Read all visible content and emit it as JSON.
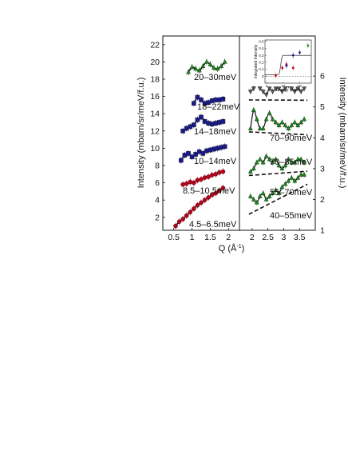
{
  "chart_data": [
    {
      "panel": "left",
      "type": "scatter",
      "xlabel": "Q (Å",
      "xlabel_sup": "-1",
      "xlabel_end": ")",
      "ylabel": "Intensity (mbarn/sr/meV/f.u.)",
      "xlim": [
        0.2,
        2.3
      ],
      "ylim": [
        0.5,
        23
      ],
      "xticks": [
        "0.5",
        "1",
        "1.5",
        "2"
      ],
      "yticks": [
        "2",
        "4",
        "6",
        "8",
        "10",
        "12",
        "14",
        "16",
        "18",
        "20",
        "22"
      ],
      "series": [
        {
          "name": "4.5-6.5meV",
          "label": "4.5–6.5meV",
          "color": "#c0001a",
          "marker": "circle",
          "x": [
            0.55,
            0.65,
            0.75,
            0.85,
            0.95,
            1.05,
            1.15,
            1.25,
            1.35,
            1.45,
            1.55,
            1.65,
            1.75,
            1.85
          ],
          "y": [
            1.0,
            1.5,
            1.8,
            2.2,
            2.6,
            3.0,
            3.4,
            3.7,
            4.0,
            4.3,
            4.6,
            4.8,
            5.1,
            5.4
          ]
        },
        {
          "name": "8.5-10.5meV",
          "label": "8.5–10.5meV",
          "color": "#c0001a",
          "marker": "circle",
          "x": [
            0.75,
            0.85,
            0.95,
            1.05,
            1.15,
            1.25,
            1.35,
            1.45,
            1.55,
            1.65,
            1.75,
            1.85
          ],
          "y": [
            5.8,
            5.9,
            6.1,
            6.0,
            6.3,
            6.4,
            6.6,
            6.7,
            6.9,
            7.0,
            7.2,
            7.3
          ]
        },
        {
          "name": "10-14meV",
          "label": "10–14meV",
          "color": "#1a1a8c",
          "marker": "square",
          "x": [
            0.7,
            0.8,
            0.9,
            1.0,
            1.1,
            1.2,
            1.3,
            1.4,
            1.5,
            1.6,
            1.7,
            1.8,
            1.9
          ],
          "y": [
            8.6,
            9.2,
            9.4,
            9.0,
            9.3,
            9.6,
            9.4,
            9.7,
            9.8,
            9.9,
            10.0,
            10.1,
            10.2
          ]
        },
        {
          "name": "14-18meV",
          "label": "14–18meV",
          "color": "#1a1a8c",
          "marker": "square",
          "x": [
            0.75,
            0.85,
            0.95,
            1.05,
            1.15,
            1.25,
            1.35,
            1.45,
            1.55,
            1.65,
            1.75,
            1.85
          ],
          "y": [
            12.0,
            12.3,
            12.5,
            12.7,
            13.3,
            13.6,
            13.1,
            12.9,
            12.8,
            12.9,
            13.0,
            13.1
          ]
        },
        {
          "name": "18-22meV",
          "label": "18–22meV",
          "color": "#1a1a8c",
          "marker": "square",
          "x": [
            1.05,
            1.15,
            1.25,
            1.35,
            1.45,
            1.55,
            1.65,
            1.75,
            1.85
          ],
          "y": [
            15.2,
            15.9,
            15.6,
            15.2,
            15.3,
            15.5,
            15.6,
            15.6,
            15.7
          ]
        },
        {
          "name": "20-30meV",
          "label": "20–30meV",
          "color": "#1a8c1a",
          "marker": "triangle",
          "x": [
            0.9,
            1.0,
            1.1,
            1.2,
            1.3,
            1.4,
            1.5,
            1.6,
            1.7,
            1.8,
            1.9
          ],
          "y": [
            18.8,
            19.4,
            19.2,
            19.0,
            19.5,
            20.0,
            19.7,
            19.3,
            19.2,
            19.5,
            20.0
          ]
        }
      ]
    },
    {
      "panel": "right",
      "type": "scatter",
      "ylabel": "Intensity (mbarn/sr/meV/f.u.)",
      "xlim": [
        1.6,
        4.0
      ],
      "ylim": [
        1,
        7.3
      ],
      "xticks": [
        "2",
        "2.5",
        "3",
        "3.5"
      ],
      "yticks": [
        "1",
        "2",
        "3",
        "4",
        "5",
        "6"
      ],
      "series": [
        {
          "name": "40-55meV",
          "label": "40–55meV",
          "color": "#1a8c1a",
          "marker": "triangle",
          "x": [
            1.95,
            2.05,
            2.15,
            2.25,
            2.35,
            2.45,
            2.55,
            2.65,
            2.75,
            2.85,
            2.95,
            3.05,
            3.15,
            3.25,
            3.35,
            3.45,
            3.55,
            3.65
          ],
          "y": [
            2.1,
            2.0,
            1.9,
            2.1,
            2.2,
            2.0,
            2.1,
            2.2,
            2.3,
            2.2,
            2.4,
            2.5,
            2.6,
            2.7,
            2.6,
            2.7,
            2.8,
            2.8
          ]
        },
        {
          "name": "55-70meV",
          "label": "55–70meV",
          "color": "#1a8c1a",
          "marker": "triangle",
          "x": [
            1.95,
            2.05,
            2.15,
            2.25,
            2.35,
            2.45,
            2.55,
            2.65,
            2.75,
            2.85,
            2.95,
            3.05,
            3.15,
            3.25,
            3.35,
            3.45,
            3.55,
            3.65
          ],
          "y": [
            2.9,
            3.0,
            3.2,
            3.3,
            3.2,
            3.4,
            3.3,
            3.2,
            3.3,
            3.1,
            3.0,
            3.1,
            3.3,
            3.2,
            3.2,
            3.3,
            3.3,
            3.2
          ]
        },
        {
          "name": "70-85meV",
          "label": "70–85meV",
          "color": "#1a8c1a",
          "marker": "triangle",
          "x": [
            1.95,
            2.05,
            2.15,
            2.25,
            2.35,
            2.45,
            2.55,
            2.65,
            2.75,
            2.85,
            2.95,
            3.05,
            3.15,
            3.25,
            3.35,
            3.45,
            3.55,
            3.65
          ],
          "y": [
            4.3,
            4.9,
            4.6,
            4.3,
            4.3,
            4.6,
            4.8,
            4.6,
            4.5,
            4.4,
            4.5,
            4.4,
            4.3,
            4.4,
            4.5,
            4.4,
            4.5,
            4.6
          ]
        },
        {
          "name": "70-90meV",
          "label": "70–90meV",
          "color": "#555555",
          "marker": "triangle-down",
          "x": [
            1.95,
            2.05,
            2.15,
            2.25,
            2.35,
            2.45,
            2.55,
            2.65,
            2.75,
            2.85,
            2.95,
            3.05,
            3.15,
            3.25,
            3.35,
            3.45,
            3.55,
            3.65
          ],
          "y": [
            5.5,
            5.6,
            5.8,
            5.6,
            5.5,
            5.4,
            5.6,
            5.5,
            5.6,
            5.6,
            5.5,
            5.6,
            5.7,
            5.6,
            5.5,
            5.6,
            5.5,
            5.6
          ]
        }
      ]
    },
    {
      "panel": "inset",
      "type": "scatter",
      "xlabel": "Energy (meV)",
      "ylabel": "Integrated Intensity",
      "xlim": [
        -1,
        27
      ],
      "ylim": [
        -0.1,
        0.52
      ],
      "xticks": [
        "0",
        "10",
        "20"
      ],
      "yticks": [
        "0",
        "0.1",
        "0.2",
        "0.3",
        "0.4",
        "0.5"
      ],
      "series": [
        {
          "name": "red",
          "color": "#c0001a",
          "x": [
            5.5,
            9.5,
            12.0,
            16.0
          ],
          "y": [
            0.01,
            0.12,
            0.17,
            0.12
          ]
        },
        {
          "name": "blue",
          "color": "#1a1a8c",
          "x": [
            12.0,
            16.0,
            20.0
          ],
          "y": [
            0.15,
            0.3,
            0.34
          ]
        },
        {
          "name": "green",
          "color": "#1a8c1a",
          "x": [
            25.0
          ],
          "y": [
            0.44
          ]
        }
      ]
    }
  ]
}
